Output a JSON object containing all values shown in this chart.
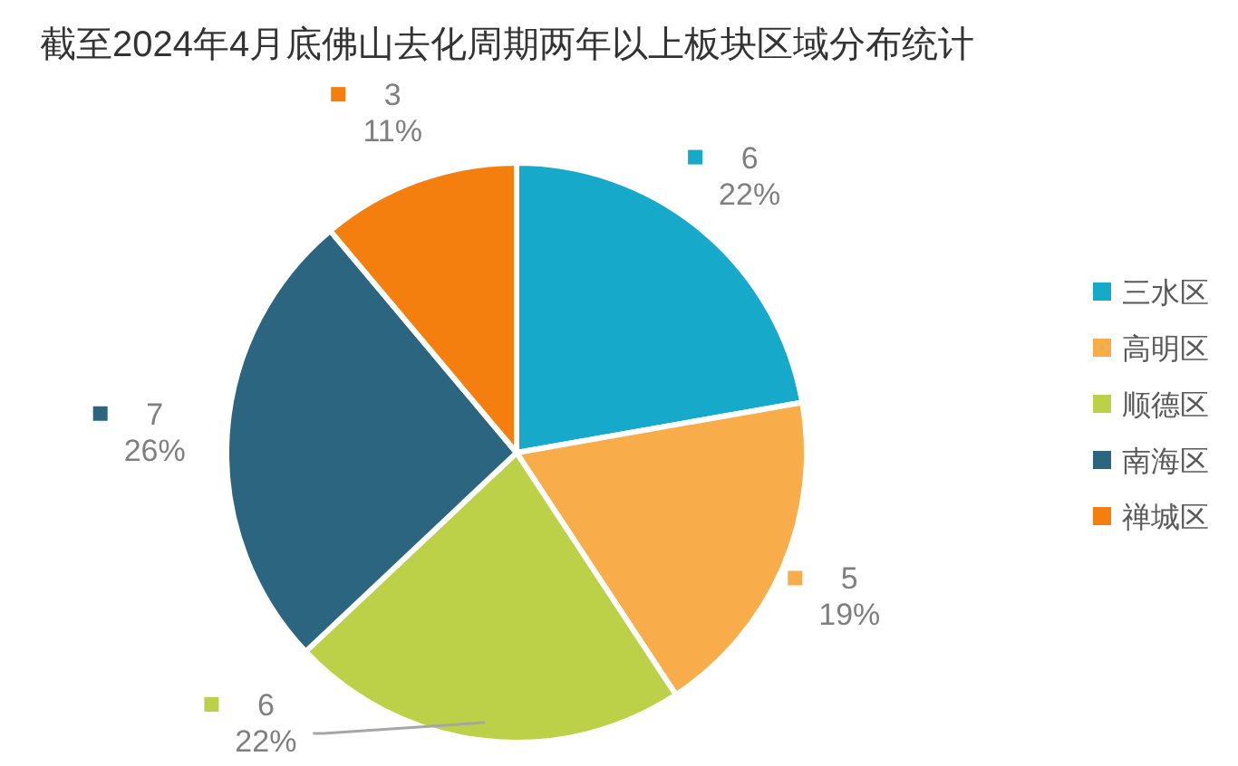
{
  "chart_data": {
    "type": "pie",
    "title": "截至2024年4月底佛山去化周期两年以上板块区域分布统计",
    "categories": [
      "三水区",
      "高明区",
      "顺德区",
      "南海区",
      "禅城区"
    ],
    "values": [
      6,
      5,
      6,
      7,
      3
    ],
    "colors": [
      "#17a9c9",
      "#f9ad4a",
      "#bdd148",
      "#2c6580",
      "#f57f0e"
    ],
    "value_labels": [
      "6\n22%",
      "5\n19%",
      "6\n22%",
      "7\n26%",
      "3\n11%"
    ],
    "legend": "right"
  }
}
